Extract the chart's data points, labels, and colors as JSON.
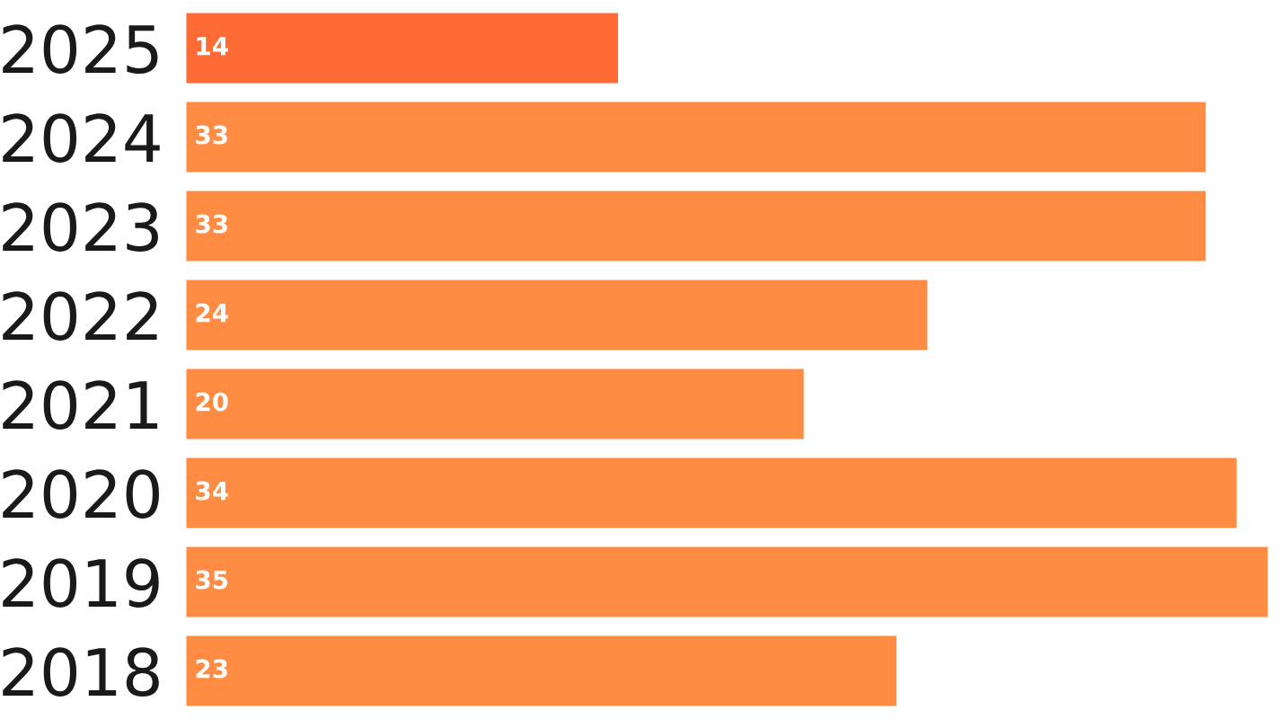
{
  "chart_data": {
    "type": "bar",
    "orientation": "horizontal",
    "categories": [
      "2025",
      "2024",
      "2023",
      "2022",
      "2021",
      "2020",
      "2019",
      "2018"
    ],
    "values": [
      14,
      33,
      33,
      24,
      20,
      34,
      35,
      23
    ],
    "colors": [
      "#ff6b35",
      "#ff8c42",
      "#ff8c42",
      "#ff8c42",
      "#ff8c42",
      "#ff8c42",
      "#ff8c42",
      "#ff8c42"
    ],
    "data_labels": true,
    "tick_labels": "y",
    "grid": false,
    "legend": false
  }
}
